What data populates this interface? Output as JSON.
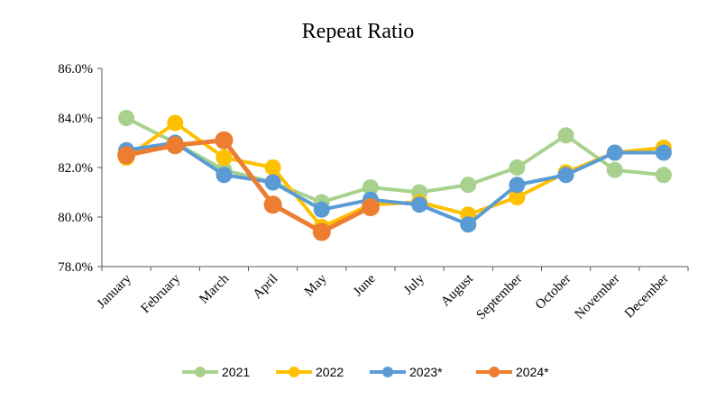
{
  "chart_data": {
    "type": "line",
    "title": "Repeat Ratio",
    "xlabel": "",
    "ylabel": "",
    "categories": [
      "January",
      "February",
      "March",
      "April",
      "May",
      "June",
      "July",
      "August",
      "September",
      "October",
      "November",
      "December"
    ],
    "ylim": [
      78.0,
      86.0
    ],
    "yticks": [
      78.0,
      80.0,
      82.0,
      84.0,
      86.0
    ],
    "ytick_labels": [
      "78.0%",
      "80.0%",
      "82.0%",
      "84.0%",
      "86.0%"
    ],
    "grid": false,
    "legend_position": "bottom",
    "series": [
      {
        "name": "2021",
        "color": "#a9d18e",
        "values": [
          84.0,
          83.0,
          81.9,
          81.4,
          80.6,
          81.2,
          81.0,
          81.3,
          82.0,
          83.3,
          81.9,
          81.7
        ]
      },
      {
        "name": "2022",
        "color": "#ffc000",
        "values": [
          82.4,
          83.8,
          82.4,
          82.0,
          79.6,
          80.5,
          80.6,
          80.1,
          80.8,
          81.8,
          82.6,
          82.8
        ]
      },
      {
        "name": "2023*",
        "color": "#5b9bd5",
        "values": [
          82.7,
          83.0,
          81.7,
          81.4,
          80.3,
          80.7,
          80.5,
          79.7,
          81.3,
          81.7,
          82.6,
          82.6
        ]
      },
      {
        "name": "2024*",
        "color": "#ed7d31",
        "values": [
          82.5,
          82.9,
          83.1,
          80.5,
          79.4,
          80.4,
          null,
          null,
          null,
          null,
          null,
          null
        ]
      }
    ]
  }
}
